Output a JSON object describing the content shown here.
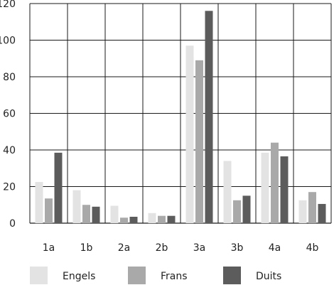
{
  "chart_data": {
    "type": "bar",
    "title": "",
    "xlabel": "",
    "ylabel": "",
    "categories": [
      "1a",
      "1b",
      "2a",
      "2b",
      "3a",
      "3b",
      "4a",
      "4b"
    ],
    "series": [
      {
        "name": "Engels",
        "color": "#e3e3e3",
        "values": [
          22.5,
          18,
          9.5,
          5.5,
          97,
          34,
          38.5,
          12.5
        ]
      },
      {
        "name": "Frans",
        "color": "#a9a9a9",
        "values": [
          13.5,
          10,
          3,
          4,
          89,
          12.5,
          44,
          17
        ]
      },
      {
        "name": "Duits",
        "color": "#5c5c5c",
        "values": [
          38.5,
          9,
          3.5,
          4,
          116,
          15,
          36.5,
          10.5
        ]
      }
    ],
    "ylim": [
      0,
      120
    ],
    "yticks": [
      0,
      20,
      40,
      60,
      80,
      100,
      120
    ],
    "grid": true,
    "legend_position": "bottom"
  }
}
